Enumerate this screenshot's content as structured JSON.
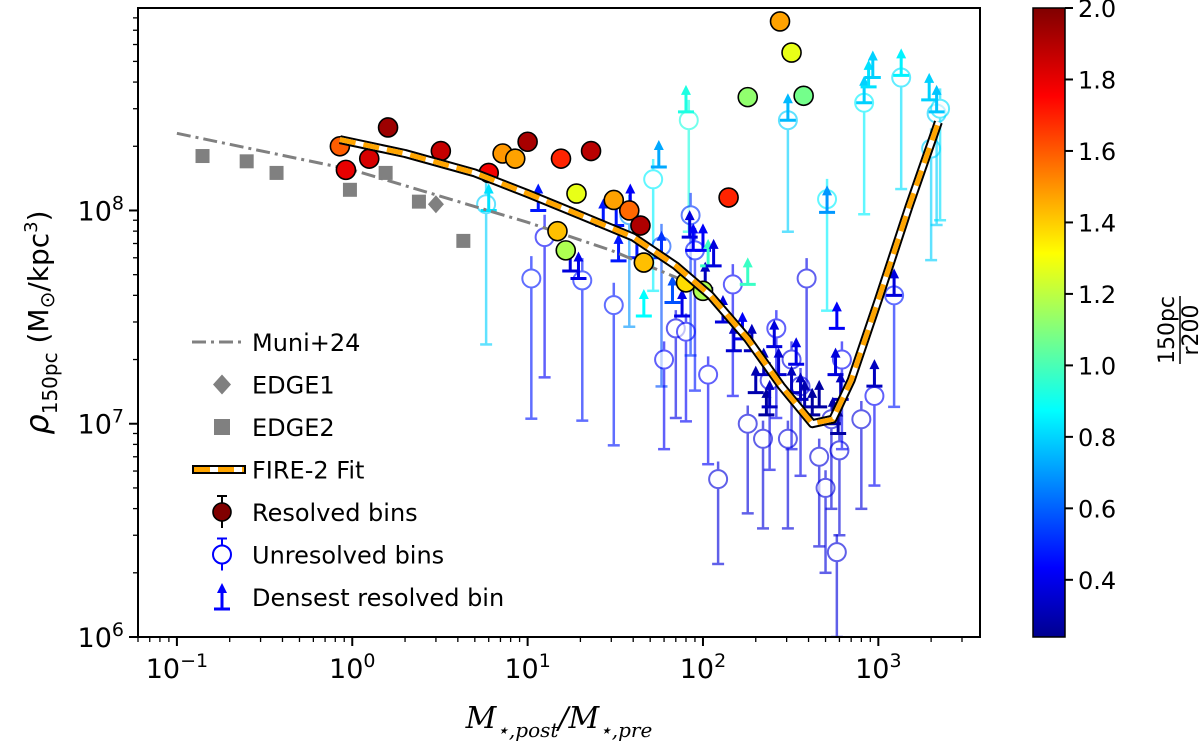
{
  "chart_data": {
    "type": "scatter",
    "x_scale": "log",
    "y_scale": "log",
    "xlim": [
      0.06,
      3800
    ],
    "ylim": [
      1000000,
      890000000
    ],
    "xlabel": "M⋆,post/M⋆,pre",
    "ylabel": "ρ150pc (M⊙/kpc³)",
    "x_ticks": [
      {
        "value": 0.1,
        "base": "10",
        "exp": "−1"
      },
      {
        "value": 1,
        "base": "10",
        "exp": "0"
      },
      {
        "value": 10,
        "base": "10",
        "exp": "1"
      },
      {
        "value": 100,
        "base": "10",
        "exp": "2"
      },
      {
        "value": 1000,
        "base": "10",
        "exp": "3"
      }
    ],
    "y_ticks": [
      {
        "value": 1000000,
        "base": "10",
        "exp": "6"
      },
      {
        "value": 10000000,
        "base": "10",
        "exp": "7"
      },
      {
        "value": 100000000,
        "base": "10",
        "exp": "8"
      }
    ],
    "colorbar": {
      "label": "150pc/r200",
      "label_num": "150pc",
      "label_den": "r200",
      "range": [
        0.24,
        2.0
      ],
      "ticks": [
        "2.0",
        "1.8",
        "1.6",
        "1.4",
        "1.2",
        "1.0",
        "0.8",
        "0.6",
        "0.4"
      ],
      "colormap": "jet"
    },
    "legend": {
      "position": "lower-left",
      "entries": [
        {
          "label": "Muni+24",
          "marker": "dashdot-line",
          "color": "#808080"
        },
        {
          "label": "EDGE1",
          "marker": "diamond",
          "color": "#808080"
        },
        {
          "label": "EDGE2",
          "marker": "square",
          "color": "#808080"
        },
        {
          "label": "FIRE-2 Fit",
          "marker": "dashed-outlined-line",
          "color": "#ffa500"
        },
        {
          "label": "Resolved bins",
          "marker": "filled-circle-errorbar",
          "color": "#800000"
        },
        {
          "label": "Unresolved bins",
          "marker": "open-circle-errorbar",
          "color": "#0000ff"
        },
        {
          "label": "Densest resolved bin",
          "marker": "lower-limit-arrow",
          "color": "#0000ff"
        }
      ]
    },
    "series": [
      {
        "name": "Muni+24",
        "kind": "line",
        "style": "dashdot",
        "color": "#808080",
        "points": [
          [
            0.1,
            230000000
          ],
          [
            1,
            155000000
          ],
          [
            10,
            88000000
          ],
          [
            30,
            65000000
          ],
          [
            100,
            43000000
          ]
        ]
      },
      {
        "name": "EDGE1",
        "kind": "diamond",
        "color": "#808080",
        "points": [
          [
            3,
            107000000
          ]
        ]
      },
      {
        "name": "EDGE2",
        "kind": "square",
        "color": "#808080",
        "points": [
          [
            0.14,
            180000000
          ],
          [
            0.25,
            170000000
          ],
          [
            0.37,
            150000000
          ],
          [
            0.97,
            125000000
          ],
          [
            1.55,
            150000000
          ],
          [
            2.4,
            110000000
          ],
          [
            4.3,
            72000000
          ]
        ]
      },
      {
        "name": "FIRE-2 Fit",
        "kind": "fit",
        "color": "#ffa500",
        "points": [
          [
            0.85,
            215000000
          ],
          [
            2,
            185000000
          ],
          [
            5,
            150000000
          ],
          [
            10,
            120000000
          ],
          [
            20,
            95000000
          ],
          [
            40,
            75000000
          ],
          [
            70,
            55000000
          ],
          [
            110,
            40000000
          ],
          [
            180,
            25000000
          ],
          [
            280,
            15000000
          ],
          [
            420,
            10000000
          ],
          [
            550,
            10500000
          ],
          [
            700,
            16000000
          ],
          [
            1000,
            38000000
          ],
          [
            1500,
            105000000
          ],
          [
            2200,
            260000000
          ]
        ]
      },
      {
        "name": "Resolved bins",
        "kind": "filled-circle",
        "points": [
          [
            0.85,
            200000000,
            1.62
          ],
          [
            0.92,
            155000000,
            1.82
          ],
          [
            1.25,
            175000000,
            1.85
          ],
          [
            1.6,
            245000000,
            1.95
          ],
          [
            3.2,
            190000000,
            1.88
          ],
          [
            6.0,
            150000000,
            1.8
          ],
          [
            7.2,
            185000000,
            1.52
          ],
          [
            8.5,
            175000000,
            1.5
          ],
          [
            10.0,
            210000000,
            1.93
          ],
          [
            15.5,
            175000000,
            1.72
          ],
          [
            19.0,
            120000000,
            1.3
          ],
          [
            23.0,
            190000000,
            1.9
          ],
          [
            31.0,
            112000000,
            1.5
          ],
          [
            38.0,
            100000000,
            1.6
          ],
          [
            44.0,
            85000000,
            1.92
          ],
          [
            46.0,
            57000000,
            1.45
          ],
          [
            16.5,
            65000000,
            1.2
          ],
          [
            14.8,
            80000000,
            1.45
          ],
          [
            80.0,
            46000000,
            1.4
          ],
          [
            100.0,
            42000000,
            1.2
          ],
          [
            140.0,
            115000000,
            1.72
          ],
          [
            180.0,
            340000000,
            1.15
          ],
          [
            275.0,
            770000000,
            1.5
          ],
          [
            320.0,
            550000000,
            1.3
          ],
          [
            375.0,
            345000000,
            1.1
          ]
        ]
      },
      {
        "name": "Unresolved bins",
        "kind": "open-circle",
        "points": [
          [
            5.8,
            107000000,
            0.82,
            0.78
          ],
          [
            10.5,
            48000000,
            0.5,
            0.78
          ],
          [
            12.5,
            75000000,
            0.45,
            0.78
          ],
          [
            20.5,
            47000000,
            0.5,
            0.78
          ],
          [
            31.0,
            36000000,
            0.5,
            0.78
          ],
          [
            38.0,
            95000000,
            0.72,
            0.7
          ],
          [
            52.0,
            140000000,
            0.88,
            0.7
          ],
          [
            58.0,
            68000000,
            0.6,
            0.78
          ],
          [
            60.0,
            20000000,
            0.45,
            0.62
          ],
          [
            70.0,
            28000000,
            0.42,
            0.62
          ],
          [
            80.0,
            27000000,
            0.45,
            0.62
          ],
          [
            83.0,
            265000000,
            0.95,
            0.7
          ],
          [
            85.0,
            95000000,
            0.55,
            0.78
          ],
          [
            90.0,
            65000000,
            0.5,
            0.78
          ],
          [
            107.0,
            17000000,
            0.45,
            0.62
          ],
          [
            122.0,
            5500000,
            0.4,
            0.6
          ],
          [
            148.0,
            45000000,
            0.45,
            0.7
          ],
          [
            180.0,
            10000000,
            0.4,
            0.62
          ],
          [
            220.0,
            8500000,
            0.4,
            0.62
          ],
          [
            240.0,
            16000000,
            0.42,
            0.62
          ],
          [
            262.0,
            28000000,
            0.45,
            0.62
          ],
          [
            305.0,
            8500000,
            0.4,
            0.62
          ],
          [
            305.0,
            265000000,
            0.82,
            0.7
          ],
          [
            320.0,
            20000000,
            0.42,
            0.62
          ],
          [
            360.0,
            15000000,
            0.42,
            0.62
          ],
          [
            390.0,
            48000000,
            0.42,
            0.7
          ],
          [
            460.0,
            7000000,
            0.4,
            0.62
          ],
          [
            500.0,
            5000000,
            0.4,
            0.6
          ],
          [
            510.0,
            113000000,
            0.88,
            0.7
          ],
          [
            540.0,
            10500000,
            0.4,
            0.62
          ],
          [
            580.0,
            2500000,
            0.4,
            0.6
          ],
          [
            600.0,
            7500000,
            0.4,
            0.6
          ],
          [
            620.0,
            20000000,
            0.45,
            0.62
          ],
          [
            950.0,
            13500000,
            0.45,
            0.62
          ],
          [
            1230.0,
            40000000,
            0.5,
            0.7
          ],
          [
            830.0,
            320000000,
            0.88,
            0.7
          ],
          [
            1350.0,
            420000000,
            0.85,
            0.7
          ],
          [
            2000.0,
            195000000,
            0.82,
            0.7
          ],
          [
            2150.0,
            285000000,
            0.82,
            0.7
          ],
          [
            2250.0,
            300000000,
            0.85,
            0.7
          ],
          [
            800.0,
            10500000,
            0.4,
            0.62
          ]
        ]
      },
      {
        "name": "Densest resolved bin",
        "kind": "lower-limit",
        "points": [
          [
            6.0,
            100000000,
            0.85
          ],
          [
            11.5,
            100000000,
            0.5
          ],
          [
            17.5,
            52000000,
            0.4
          ],
          [
            19.5,
            48000000,
            0.42
          ],
          [
            27.0,
            85000000,
            0.5
          ],
          [
            32.0,
            85000000,
            0.5
          ],
          [
            33.0,
            58000000,
            0.5
          ],
          [
            38.5,
            100000000,
            0.45
          ],
          [
            42.0,
            60000000,
            0.5
          ],
          [
            46.0,
            32000000,
            0.9
          ],
          [
            56.0,
            160000000,
            0.75
          ],
          [
            58.0,
            60000000,
            0.55
          ],
          [
            67.0,
            37000000,
            0.6
          ],
          [
            76.0,
            32000000,
            0.42
          ],
          [
            80.0,
            290000000,
            0.95
          ],
          [
            84.0,
            75000000,
            0.4
          ],
          [
            88.0,
            65000000,
            0.45
          ],
          [
            100.0,
            65000000,
            0.45
          ],
          [
            103.0,
            43000000,
            0.35
          ],
          [
            107.0,
            55000000,
            1.0
          ],
          [
            115.0,
            55000000,
            0.4
          ],
          [
            130.0,
            30000000,
            0.4
          ],
          [
            150.0,
            22000000,
            0.38
          ],
          [
            168.0,
            25000000,
            0.45
          ],
          [
            180.0,
            45000000,
            1.0
          ],
          [
            190.0,
            22000000,
            0.35
          ],
          [
            200.0,
            14000000,
            0.32
          ],
          [
            222.0,
            17000000,
            0.35
          ],
          [
            230.0,
            11000000,
            0.3
          ],
          [
            240.0,
            12000000,
            0.35
          ],
          [
            255.0,
            23000000,
            0.4
          ],
          [
            270.0,
            17000000,
            0.38
          ],
          [
            305.0,
            265000000,
            0.78
          ],
          [
            320.0,
            14000000,
            0.35
          ],
          [
            340.0,
            19000000,
            0.42
          ],
          [
            360.0,
            13000000,
            0.35
          ],
          [
            380.0,
            12000000,
            0.32
          ],
          [
            420.0,
            11000000,
            0.3
          ],
          [
            460.0,
            12000000,
            0.3
          ],
          [
            510.0,
            98000000,
            0.72
          ],
          [
            550.0,
            10000000,
            0.3
          ],
          [
            570.0,
            17000000,
            0.4
          ],
          [
            580.0,
            28000000,
            0.45
          ],
          [
            590.0,
            9000000,
            0.3
          ],
          [
            610.0,
            13000000,
            0.35
          ],
          [
            950.0,
            15000000,
            0.35
          ],
          [
            830.0,
            320000000,
            0.82
          ],
          [
            880.0,
            380000000,
            0.85
          ],
          [
            930.0,
            420000000,
            0.82
          ],
          [
            1230.0,
            40000000,
            0.4
          ],
          [
            1350.0,
            430000000,
            0.88
          ],
          [
            1950.0,
            330000000,
            0.82
          ],
          [
            2150.0,
            290000000,
            0.8
          ]
        ]
      }
    ]
  }
}
